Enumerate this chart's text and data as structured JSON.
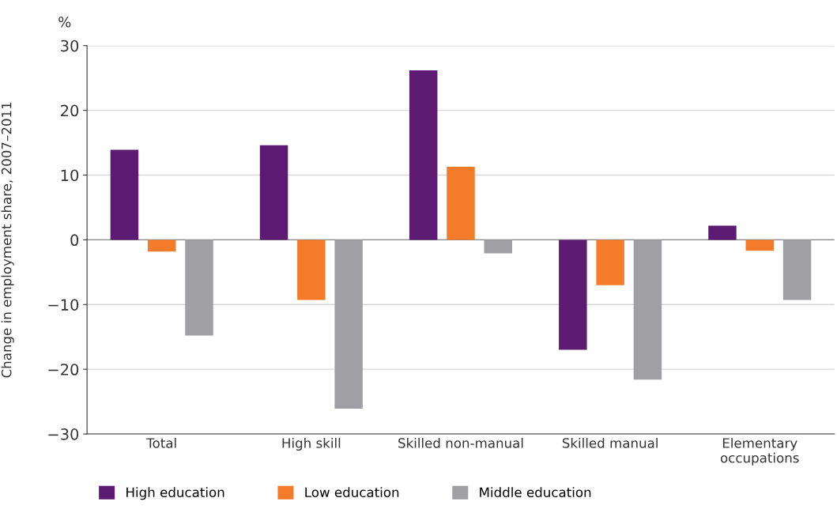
{
  "chart_data": {
    "type": "bar",
    "ylabel": "Change in employment share, 2007–2011",
    "annotations": [
      "%"
    ],
    "categories": [
      "Total",
      "High skill",
      "Skilled non-manual",
      "Skilled manual",
      "Elementary\noccupations"
    ],
    "series": [
      {
        "name": "High education",
        "color": "#5c1a72",
        "values": [
          13.9,
          14.6,
          26.2,
          -17.0,
          2.2
        ]
      },
      {
        "name": "Low education",
        "color": "#f47b2a",
        "values": [
          -1.8,
          -9.3,
          11.3,
          -7.0,
          -1.7
        ]
      },
      {
        "name": "Middle education",
        "color": "#a0a0a4",
        "values": [
          -14.8,
          -26.1,
          -2.1,
          -21.6,
          -9.3
        ]
      }
    ],
    "ylim": [
      -30,
      30
    ],
    "yticks": [
      -30,
      -20,
      -10,
      0,
      10,
      20,
      30
    ],
    "grid": "y",
    "legend": "bottom"
  }
}
